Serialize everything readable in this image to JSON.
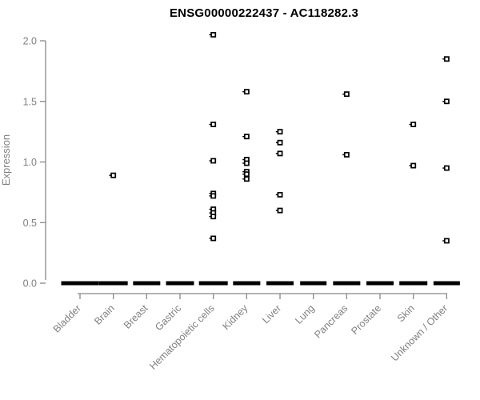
{
  "chart_data": {
    "type": "scatter",
    "title": "ENSG00000222437 - AC118282.3",
    "xlabel": "",
    "ylabel": "Expression",
    "ylim": [
      0,
      2.05
    ],
    "y_ticks": [
      "0.0",
      "0.5",
      "1.0",
      "1.5",
      "2.0"
    ],
    "grid": false,
    "legend": "none",
    "marker": "open-square-with-left-tick",
    "categories": [
      "Bladder",
      "Brain",
      "Breast",
      "Gastric",
      "Hematopoietic cells",
      "Kidney",
      "Liver",
      "Lung",
      "Pancreas",
      "Prostate",
      "Skin",
      "Unknown / Other"
    ],
    "series": [
      {
        "category": "Bladder",
        "values": [],
        "zero_dash": true,
        "zero_dash_width": 47
      },
      {
        "category": "Brain",
        "values": [
          0.89
        ],
        "zero_dash": true,
        "zero_dash_width": 36
      },
      {
        "category": "Breast",
        "values": [],
        "zero_dash": true,
        "zero_dash_width": 34
      },
      {
        "category": "Gastric",
        "values": [],
        "zero_dash": true,
        "zero_dash_width": 35
      },
      {
        "category": "Hematopoietic cells",
        "values": [
          2.05,
          1.31,
          1.01,
          0.74,
          0.72,
          0.61,
          0.58,
          0.55,
          0.37
        ],
        "zero_dash": true,
        "zero_dash_width": 36
      },
      {
        "category": "Kidney",
        "values": [
          1.58,
          1.21,
          1.02,
          0.99,
          0.92,
          0.9,
          0.86
        ],
        "zero_dash": true,
        "zero_dash_width": 34
      },
      {
        "category": "Liver",
        "values": [
          1.25,
          1.16,
          1.07,
          0.73,
          0.6
        ],
        "zero_dash": true,
        "zero_dash_width": 34
      },
      {
        "category": "Lung",
        "values": [],
        "zero_dash": true,
        "zero_dash_width": 33
      },
      {
        "category": "Pancreas",
        "values": [
          1.56,
          1.06
        ],
        "zero_dash": true,
        "zero_dash_width": 34
      },
      {
        "category": "Prostate",
        "values": [],
        "zero_dash": true,
        "zero_dash_width": 34
      },
      {
        "category": "Skin",
        "values": [
          1.31,
          0.97
        ],
        "zero_dash": true,
        "zero_dash_width": 35
      },
      {
        "category": "Unknown / Other",
        "values": [
          1.85,
          1.5,
          0.95,
          0.35
        ],
        "zero_dash": true,
        "zero_dash_width": 33
      }
    ],
    "colors": {
      "points": "#000000",
      "zero_dash": "#000000",
      "axis_line": "#888888",
      "tick_labels": "#808080",
      "title": "#000000",
      "background": "#ffffff"
    }
  }
}
